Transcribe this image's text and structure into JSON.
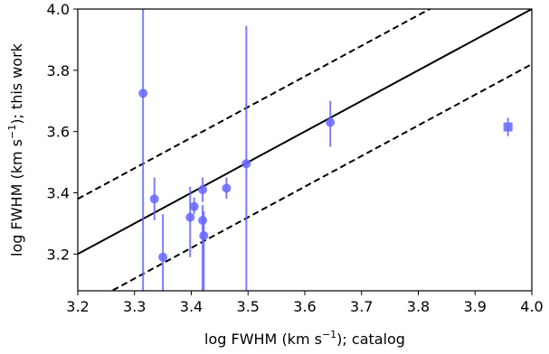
{
  "chart_data": {
    "type": "scatter",
    "xlabel_main": "log FWHM (km s",
    "xlabel_sup": "−1",
    "xlabel_tail": "); catalog",
    "ylabel_main": "log FWHM (km s",
    "ylabel_sup": "−1",
    "ylabel_tail": "); this work",
    "xlim": [
      3.2,
      4.0
    ],
    "ylim": [
      3.08,
      4.0
    ],
    "x_ticks": [
      "3.2",
      "3.3",
      "3.4",
      "3.5",
      "3.6",
      "3.7",
      "3.8",
      "3.9",
      "4.0"
    ],
    "y_ticks": [
      "3.2",
      "3.4",
      "3.6",
      "3.8",
      "4.0"
    ],
    "grid": false,
    "marker_color": "#6666ff",
    "lines": [
      {
        "style": "solid",
        "intercept": 0.0
      },
      {
        "style": "dashed",
        "intercept": 0.18
      },
      {
        "style": "dashed",
        "intercept": -0.18
      }
    ],
    "points": [
      {
        "x": 3.315,
        "y": 3.725,
        "yerr_low": 3.08,
        "yerr_high": 4.0,
        "marker": "circle"
      },
      {
        "x": 3.335,
        "y": 3.38,
        "yerr_low": 3.31,
        "yerr_high": 3.45,
        "marker": "circle"
      },
      {
        "x": 3.35,
        "y": 3.19,
        "yerr_low": 3.08,
        "yerr_high": 3.33,
        "marker": "circle"
      },
      {
        "x": 3.398,
        "y": 3.32,
        "yerr_low": 3.19,
        "yerr_high": 3.42,
        "marker": "circle"
      },
      {
        "x": 3.405,
        "y": 3.355,
        "yerr_low": 3.33,
        "yerr_high": 3.385,
        "marker": "circle"
      },
      {
        "x": 3.42,
        "y": 3.41,
        "yerr_low": 3.37,
        "yerr_high": 3.45,
        "marker": "circle"
      },
      {
        "x": 3.42,
        "y": 3.31,
        "yerr_low": 3.08,
        "yerr_high": 3.36,
        "marker": "circle"
      },
      {
        "x": 3.422,
        "y": 3.26,
        "yerr_low": 3.08,
        "yerr_high": 3.34,
        "marker": "circle"
      },
      {
        "x": 3.462,
        "y": 3.415,
        "yerr_low": 3.38,
        "yerr_high": 3.45,
        "marker": "circle"
      },
      {
        "x": 3.497,
        "y": 3.495,
        "yerr_low": 3.08,
        "yerr_high": 3.945,
        "marker": "circle"
      },
      {
        "x": 3.645,
        "y": 3.63,
        "yerr_low": 3.55,
        "yerr_high": 3.7,
        "marker": "circle"
      },
      {
        "x": 3.958,
        "y": 3.615,
        "yerr_low": 3.585,
        "yerr_high": 3.645,
        "marker": "square"
      }
    ]
  }
}
